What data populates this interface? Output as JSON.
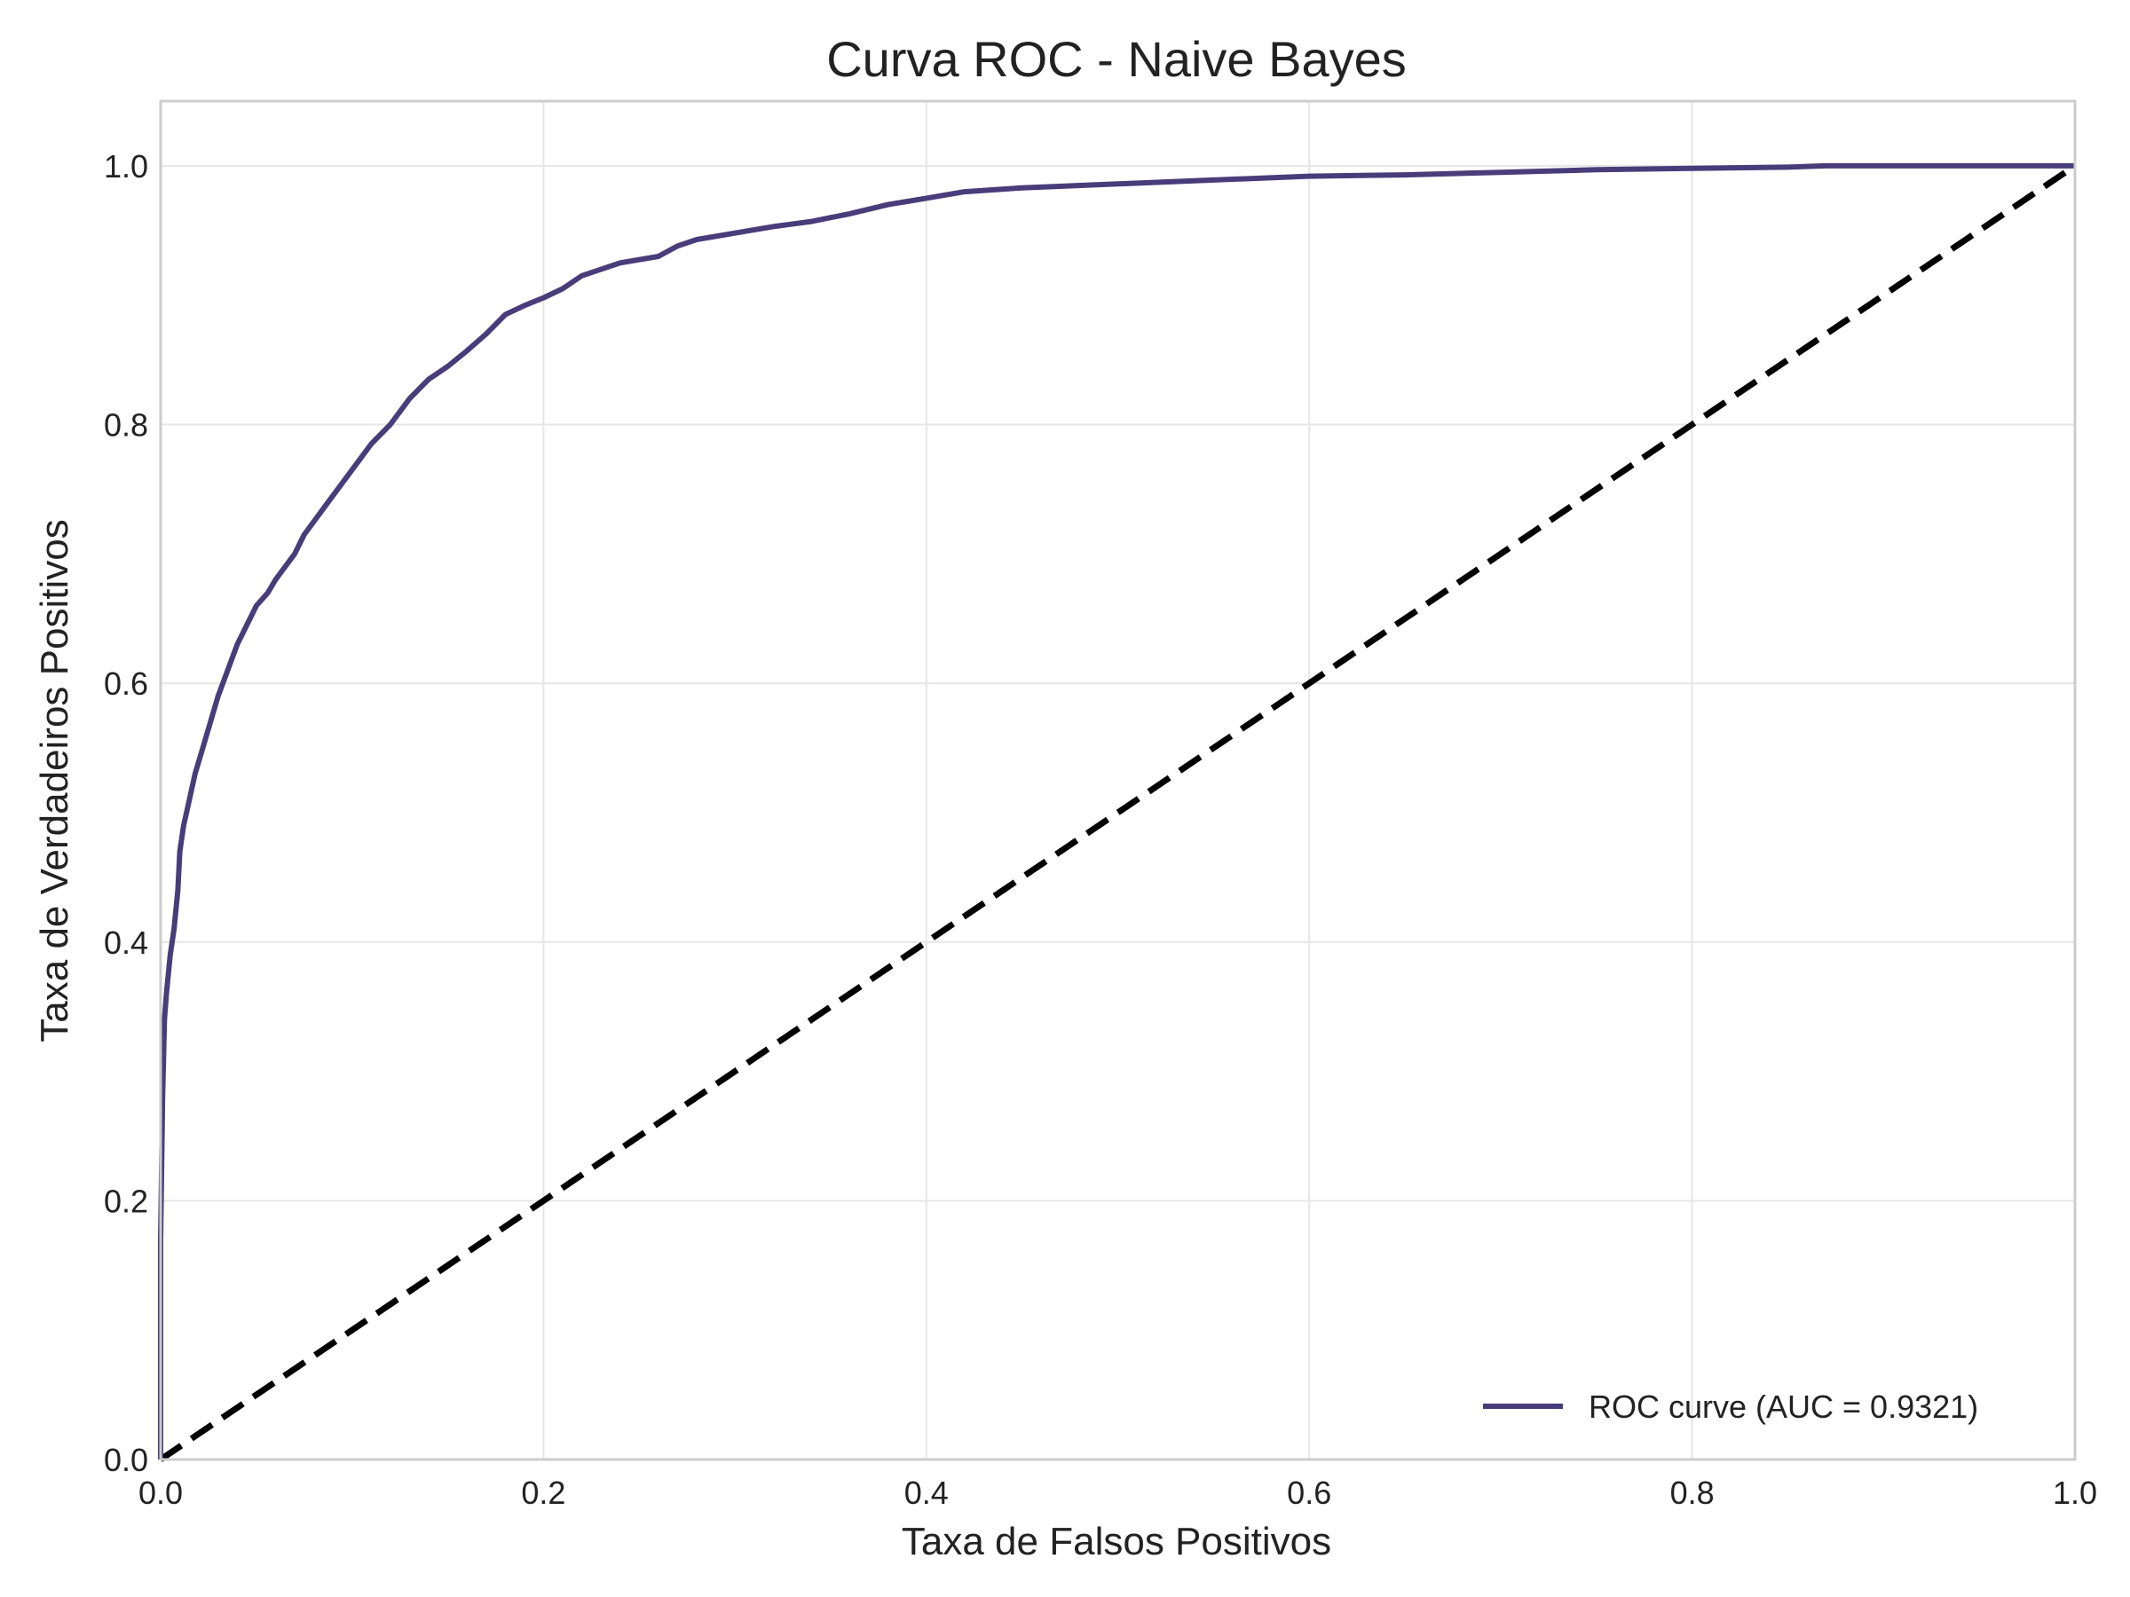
{
  "chart_data": {
    "type": "line",
    "title": "Curva ROC - Naive Bayes",
    "xlabel": "Taxa de Falsos Positivos",
    "ylabel": "Taxa de Verdadeiros Positivos",
    "xlim": [
      0.0,
      1.0
    ],
    "ylim": [
      0.0,
      1.05
    ],
    "xticks": [
      0.0,
      0.2,
      0.4,
      0.6,
      0.8,
      1.0
    ],
    "yticks": [
      0.0,
      0.2,
      0.4,
      0.6,
      0.8,
      1.0
    ],
    "xtick_labels": [
      "0.0",
      "0.2",
      "0.4",
      "0.6",
      "0.8",
      "1.0"
    ],
    "ytick_labels": [
      "0.0",
      "0.2",
      "0.4",
      "0.6",
      "0.8",
      "1.0"
    ],
    "grid": true,
    "legend_position": "bottom-right",
    "series": [
      {
        "name": "ROC curve (AUC = 0.9321)",
        "color": "#483d7a",
        "style": "solid",
        "points": [
          [
            0.0,
            0.0
          ],
          [
            0.0,
            0.17
          ],
          [
            0.001,
            0.28
          ],
          [
            0.002,
            0.34
          ],
          [
            0.003,
            0.36
          ],
          [
            0.005,
            0.39
          ],
          [
            0.007,
            0.41
          ],
          [
            0.009,
            0.44
          ],
          [
            0.01,
            0.47
          ],
          [
            0.012,
            0.49
          ],
          [
            0.015,
            0.51
          ],
          [
            0.018,
            0.53
          ],
          [
            0.022,
            0.55
          ],
          [
            0.026,
            0.57
          ],
          [
            0.03,
            0.59
          ],
          [
            0.035,
            0.61
          ],
          [
            0.04,
            0.63
          ],
          [
            0.045,
            0.645
          ],
          [
            0.05,
            0.66
          ],
          [
            0.056,
            0.67
          ],
          [
            0.06,
            0.68
          ],
          [
            0.065,
            0.69
          ],
          [
            0.07,
            0.7
          ],
          [
            0.075,
            0.715
          ],
          [
            0.08,
            0.725
          ],
          [
            0.085,
            0.735
          ],
          [
            0.09,
            0.745
          ],
          [
            0.1,
            0.765
          ],
          [
            0.11,
            0.785
          ],
          [
            0.12,
            0.8
          ],
          [
            0.13,
            0.82
          ],
          [
            0.14,
            0.835
          ],
          [
            0.15,
            0.845
          ],
          [
            0.16,
            0.857
          ],
          [
            0.17,
            0.87
          ],
          [
            0.18,
            0.885
          ],
          [
            0.19,
            0.892
          ],
          [
            0.2,
            0.898
          ],
          [
            0.21,
            0.905
          ],
          [
            0.22,
            0.915
          ],
          [
            0.24,
            0.925
          ],
          [
            0.26,
            0.93
          ],
          [
            0.27,
            0.938
          ],
          [
            0.28,
            0.943
          ],
          [
            0.3,
            0.948
          ],
          [
            0.32,
            0.953
          ],
          [
            0.34,
            0.957
          ],
          [
            0.36,
            0.963
          ],
          [
            0.38,
            0.97
          ],
          [
            0.4,
            0.975
          ],
          [
            0.42,
            0.98
          ],
          [
            0.45,
            0.983
          ],
          [
            0.5,
            0.986
          ],
          [
            0.55,
            0.989
          ],
          [
            0.6,
            0.992
          ],
          [
            0.65,
            0.993
          ],
          [
            0.7,
            0.995
          ],
          [
            0.75,
            0.997
          ],
          [
            0.8,
            0.998
          ],
          [
            0.85,
            0.999
          ],
          [
            0.87,
            1.0
          ],
          [
            1.0,
            1.0
          ]
        ]
      },
      {
        "name": "",
        "color": "#000000",
        "style": "dashed",
        "points": [
          [
            0.0,
            0.0
          ],
          [
            1.0,
            1.0
          ]
        ]
      }
    ]
  }
}
